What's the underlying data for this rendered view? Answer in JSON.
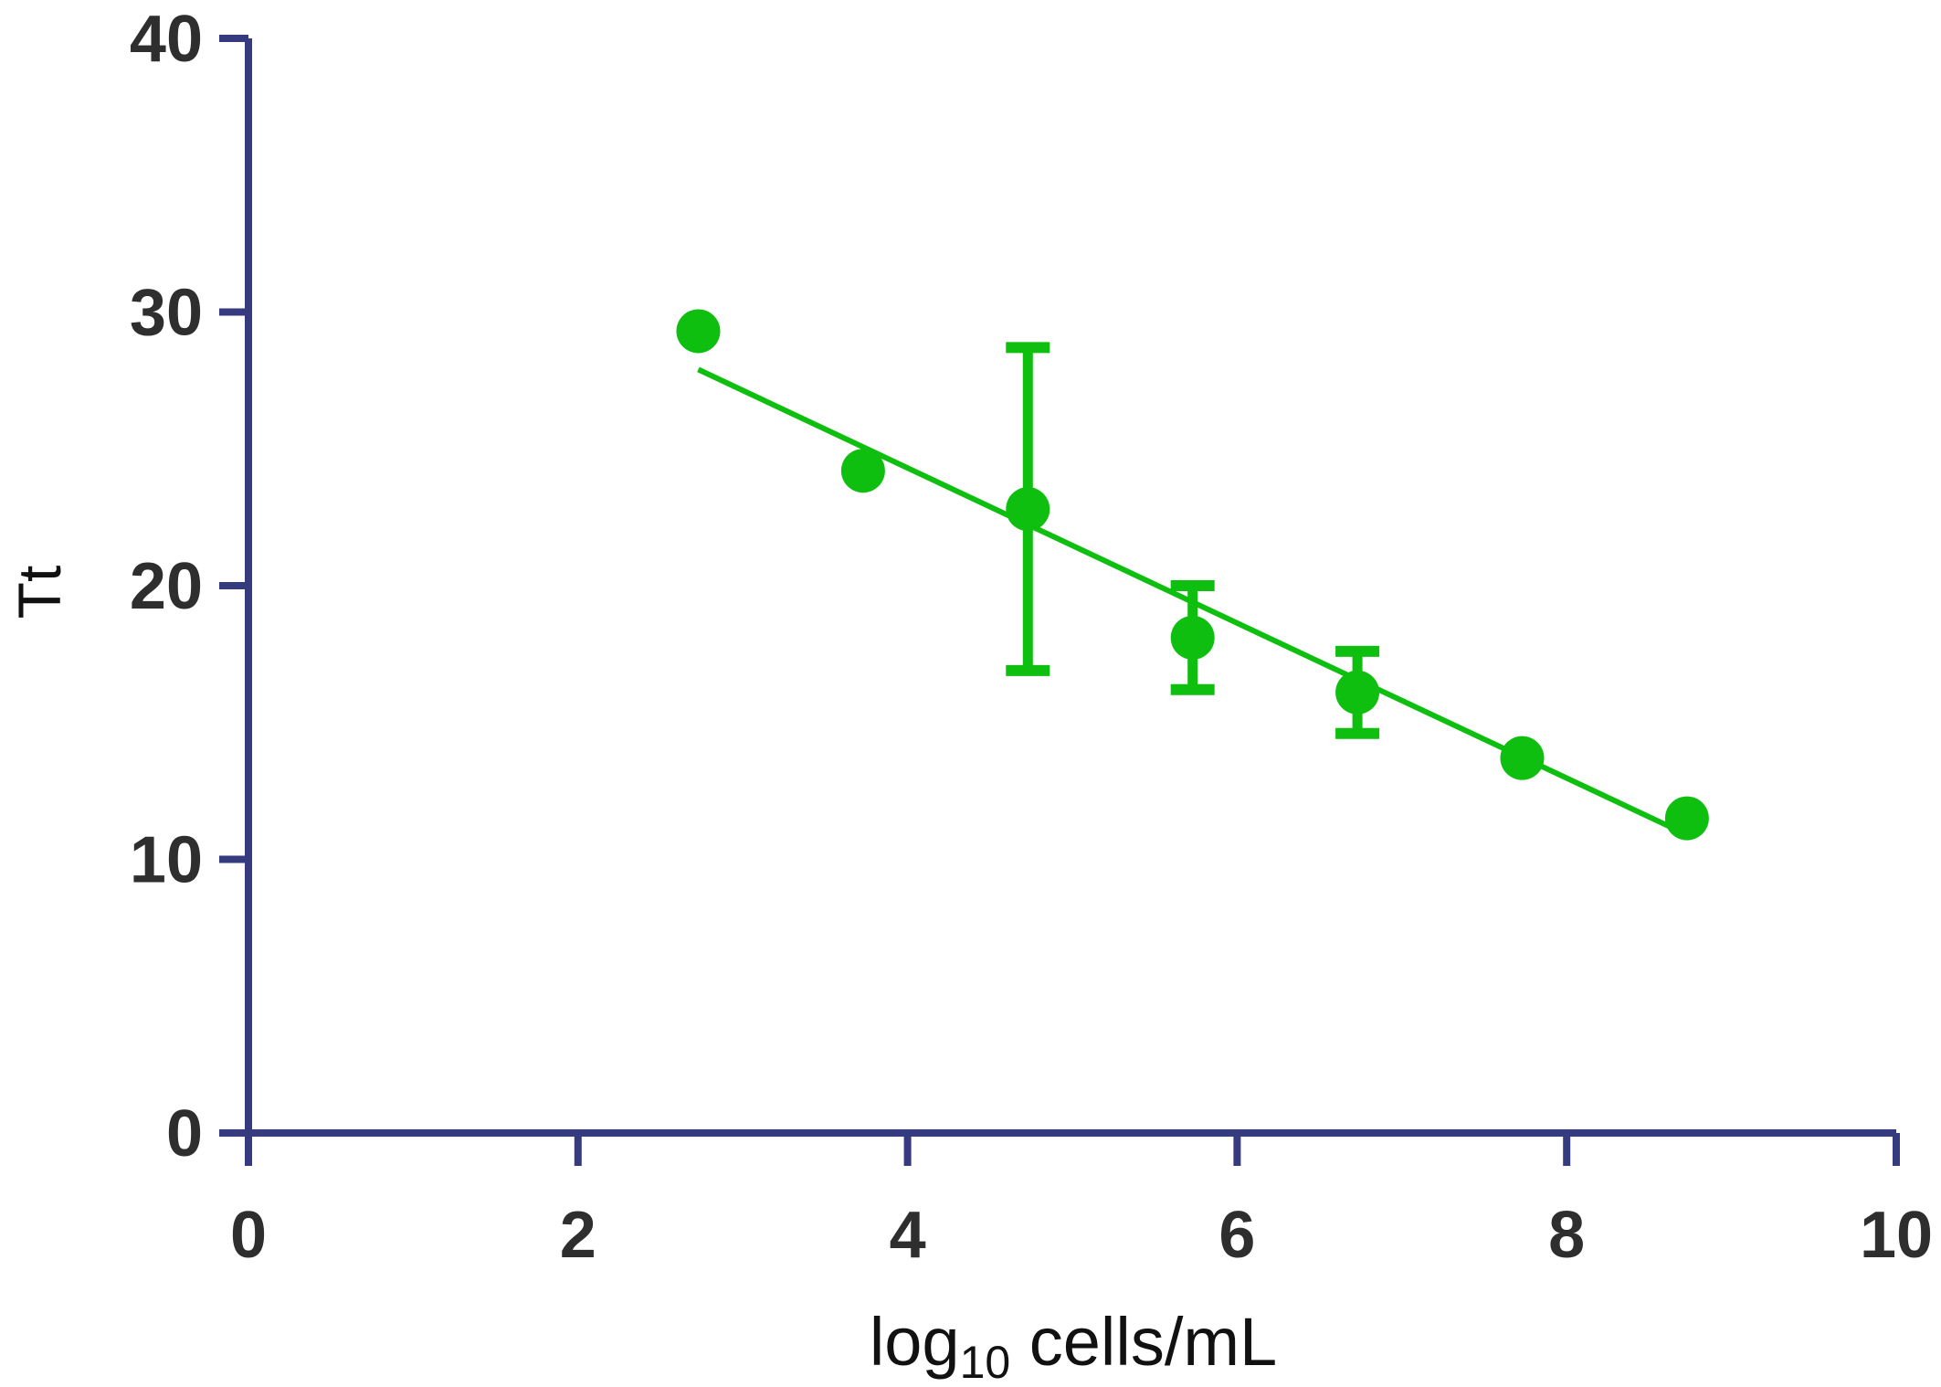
{
  "chart_data": {
    "type": "scatter",
    "title": "",
    "xlabel": "log10 cells/mL",
    "xlabel_parts": {
      "base": "log",
      "subscript": "10",
      "rest": " cells/mL"
    },
    "ylabel": "Tt",
    "xlim": [
      0,
      10
    ],
    "ylim": [
      0,
      40
    ],
    "x_ticks": [
      0,
      2,
      4,
      6,
      8,
      10
    ],
    "y_ticks": [
      0,
      10,
      20,
      30,
      40
    ],
    "grid": false,
    "legend": "none",
    "series": [
      {
        "x": [
          2.73,
          3.73,
          4.73,
          5.73,
          6.73,
          7.73,
          8.73
        ],
        "y": [
          29.3,
          24.2,
          22.8,
          18.1,
          16.1,
          13.7,
          11.5
        ],
        "error": [
          0,
          0,
          5.9,
          1.9,
          1.5,
          0,
          0
        ]
      }
    ],
    "fit_line": {
      "x": [
        2.73,
        8.73
      ],
      "y": [
        27.9,
        10.9
      ]
    },
    "colors": {
      "axis": "#363a7e",
      "series": "#0fbf0f",
      "tick_text": "#2e2e2e",
      "label_text": "#111111"
    }
  }
}
